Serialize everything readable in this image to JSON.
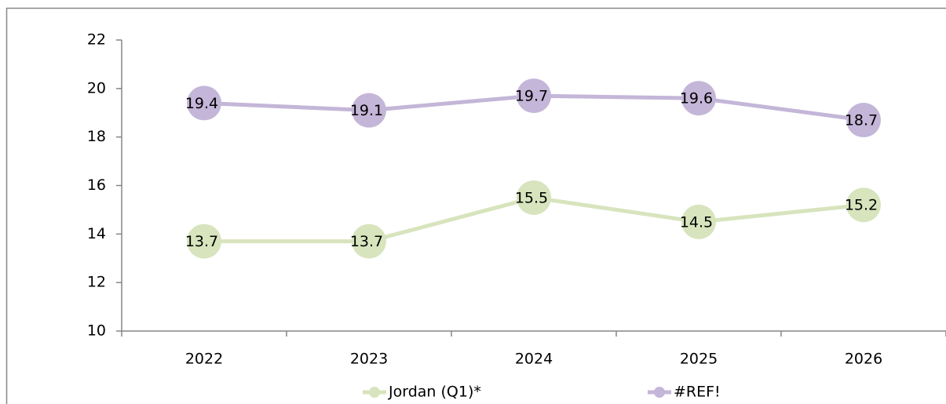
{
  "chart_data": {
    "type": "line",
    "categories": [
      "2022",
      "2023",
      "2024",
      "2025",
      "2026"
    ],
    "series": [
      {
        "name": "Jordan (Q1)*",
        "color": "#d7e4bd",
        "values": [
          13.7,
          13.7,
          15.5,
          14.5,
          15.2
        ]
      },
      {
        "name": "#REF!",
        "color": "#c4b6d8",
        "values": [
          19.4,
          19.1,
          19.7,
          19.6,
          18.7
        ]
      }
    ],
    "ylim": [
      10,
      22
    ],
    "yticks": [
      10,
      12,
      14,
      16,
      18,
      20,
      22
    ],
    "grid": false,
    "legend": "bottom",
    "data_labels": true
  }
}
